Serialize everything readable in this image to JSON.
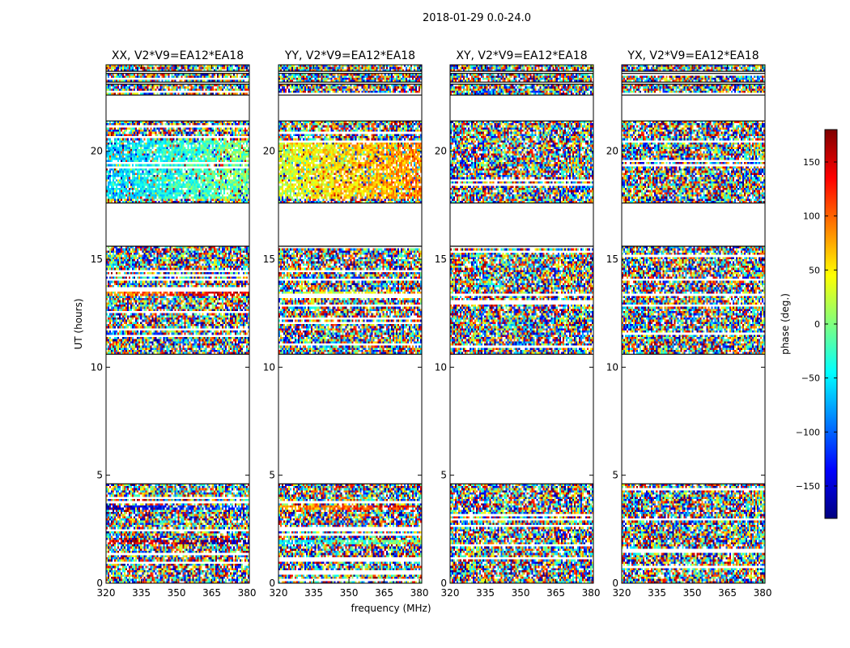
{
  "chart_data": {
    "type": "heatmap",
    "suptitle": "2018-01-29 0.0-24.0",
    "xlabel": "frequency (MHz)",
    "ylabel": "UT (hours)",
    "xlim": [
      320,
      381
    ],
    "ylim": [
      0,
      24
    ],
    "xticks": [
      320,
      335,
      350,
      365,
      380
    ],
    "yticks": [
      0,
      5,
      10,
      15,
      20
    ],
    "colorbar": {
      "label": "phase (deg.)",
      "range": [
        -180,
        180
      ],
      "ticks": [
        150,
        100,
        50,
        0,
        -50,
        -100,
        -150
      ],
      "tick_labels": [
        "150",
        "100",
        "50",
        "0",
        "−50",
        "−100",
        "−150"
      ],
      "colormap": "jet",
      "colors": [
        "#00007f",
        "#0000ff",
        "#007fff",
        "#00ffff",
        "#7fff7f",
        "#ffff00",
        "#ff7f00",
        "#ff0000",
        "#7f0000"
      ]
    },
    "flagged_ut_ranges": [
      [
        4.6,
        10.6
      ],
      [
        15.6,
        17.6
      ],
      [
        21.4,
        22.6
      ],
      [
        23.1,
        23.2
      ],
      [
        23.6,
        23.7
      ]
    ],
    "panels": [
      {
        "title": "XX, V2*V9=EA12*EA18",
        "polarization": "XX",
        "coherent_bands": [
          [
            17.8,
            20.5,
            -30
          ],
          [
            13.3,
            13.5,
            120
          ],
          [
            3.45,
            3.6,
            -130
          ],
          [
            1.8,
            2.0,
            170
          ]
        ]
      },
      {
        "title": "YY, V2*V9=EA12*EA18",
        "polarization": "YY",
        "coherent_bands": [
          [
            17.8,
            20.5,
            60
          ],
          [
            13.3,
            13.5,
            40
          ],
          [
            3.45,
            3.6,
            110
          ],
          [
            1.8,
            2.0,
            -20
          ]
        ]
      },
      {
        "title": "XY, V2*V9=EA12*EA18",
        "polarization": "XY",
        "coherent_bands": []
      },
      {
        "title": "YX, V2*V9=EA12*EA18",
        "polarization": "YX",
        "coherent_bands": []
      }
    ]
  }
}
